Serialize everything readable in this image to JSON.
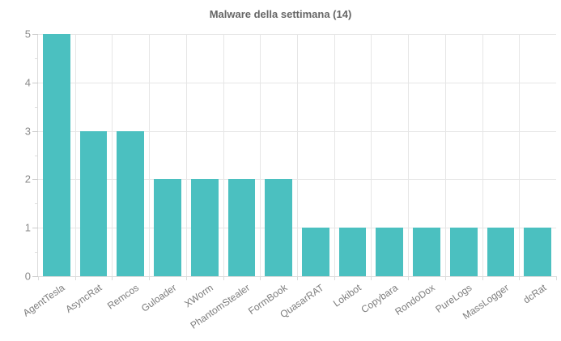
{
  "chart_data": {
    "type": "bar",
    "title": "Malware della settimana (14)",
    "categories": [
      "AgentTesla",
      "AsyncRat",
      "Remcos",
      "Guloader",
      "XWorm",
      "PhantomStealer",
      "FormBook",
      "QuasarRAT",
      "Lokibot",
      "Copybara",
      "RondoDox",
      "PureLogs",
      "MassLogger",
      "dcRat"
    ],
    "values": [
      5,
      3,
      3,
      2,
      2,
      2,
      2,
      1,
      1,
      1,
      1,
      1,
      1,
      1
    ],
    "xlabel": "",
    "ylabel": "",
    "ylim": [
      0,
      5
    ],
    "yticks": [
      0,
      1,
      2,
      3,
      4,
      5
    ],
    "minor_tick_step": 0.5,
    "grid": true,
    "legend": false,
    "colors": {
      "bar": "#4bc0c0",
      "title": "#666666",
      "y_label": "#8a8a8a",
      "x_label": "#7d7d7d",
      "gridline": "#e6e6e6",
      "axis_line": "#dcdcdc"
    }
  }
}
